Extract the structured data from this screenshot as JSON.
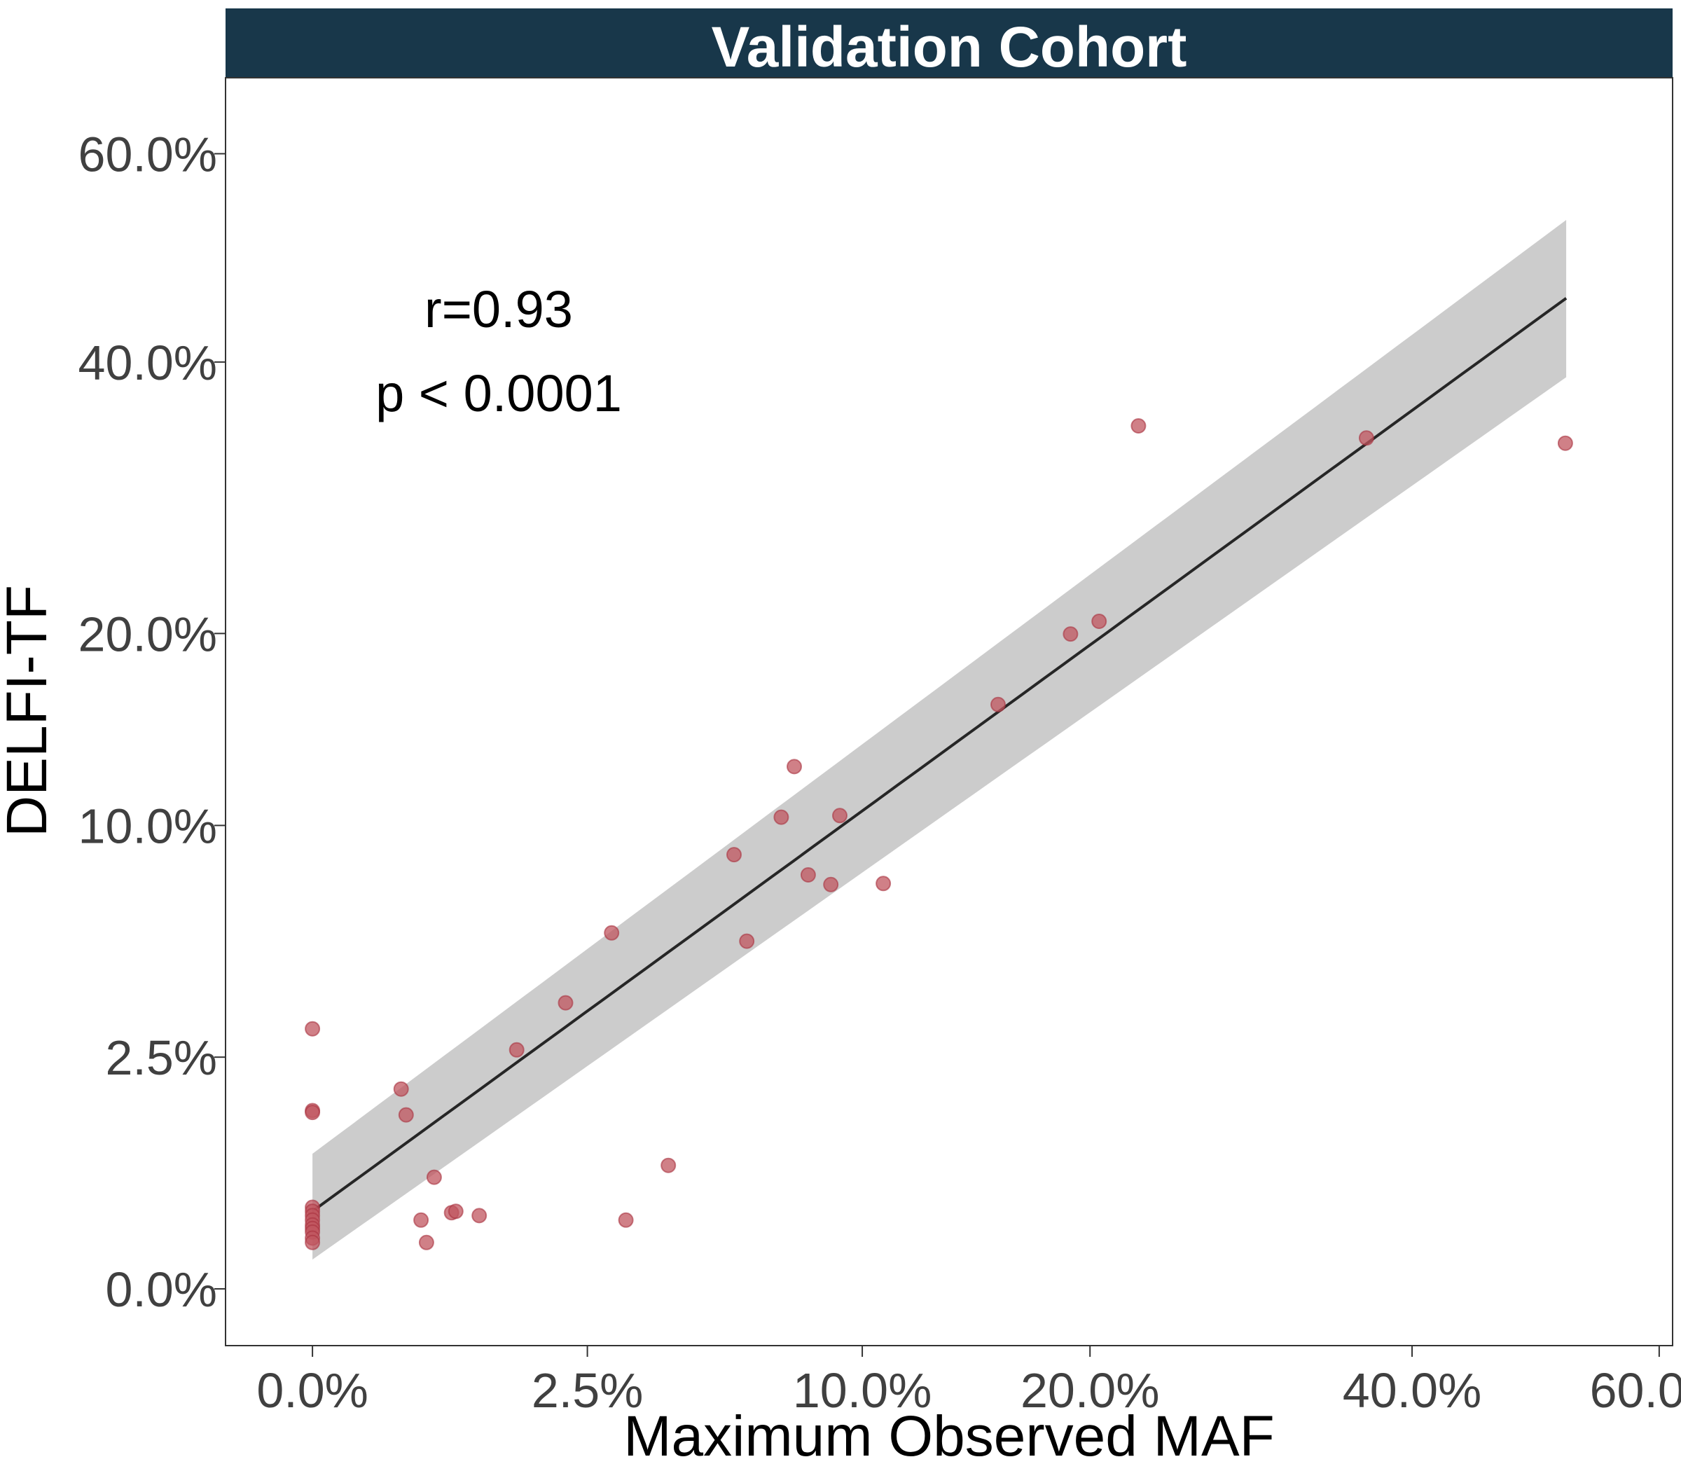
{
  "chart_data": {
    "type": "scatter",
    "title": "Validation Cohort",
    "xlabel": "Maximum Observed MAF",
    "ylabel": "DELFI-TF",
    "scale": "sqrt",
    "x_ticks": [
      0,
      0.025,
      0.1,
      0.2,
      0.4,
      0.6
    ],
    "x_tick_labels": [
      "0.0%",
      "2.5%",
      "10.0%",
      "20.0%",
      "40.0%",
      "60.0%"
    ],
    "y_ticks": [
      0,
      0.025,
      0.1,
      0.2,
      0.4,
      0.6
    ],
    "y_tick_labels": [
      "0.0%",
      "2.5%",
      "10.0%",
      "20.0%",
      "40.0%",
      "60.0%"
    ],
    "xlim": [
      -0.0025,
      0.612
    ],
    "ylim": [
      -0.0015,
      0.683
    ],
    "grid": false,
    "legend": "none",
    "annotations": {
      "r": "r=0.93",
      "p": "p < 0.0001"
    },
    "points": [
      {
        "x": 0.0,
        "y": 0.0315
      },
      {
        "x": 0.0,
        "y": 0.0148
      },
      {
        "x": 0.0,
        "y": 0.0145
      },
      {
        "x": 0.0,
        "y": 0.0031
      },
      {
        "x": 0.0,
        "y": 0.0028
      },
      {
        "x": 0.0,
        "y": 0.0025
      },
      {
        "x": 0.0,
        "y": 0.0022
      },
      {
        "x": 0.0,
        "y": 0.0019
      },
      {
        "x": 0.0,
        "y": 0.0017
      },
      {
        "x": 0.0,
        "y": 0.0015
      },
      {
        "x": 0.0,
        "y": 0.0012
      },
      {
        "x": 0.0,
        "y": 0.001
      },
      {
        "x": 0.0026,
        "y": 0.0186
      },
      {
        "x": 0.0029,
        "y": 0.0141
      },
      {
        "x": 0.0039,
        "y": 0.0022
      },
      {
        "x": 0.0043,
        "y": 0.001
      },
      {
        "x": 0.0049,
        "y": 0.0058
      },
      {
        "x": 0.0064,
        "y": 0.0027
      },
      {
        "x": 0.0068,
        "y": 0.0028
      },
      {
        "x": 0.0092,
        "y": 0.0025
      },
      {
        "x": 0.0138,
        "y": 0.0266
      },
      {
        "x": 0.0212,
        "y": 0.0381
      },
      {
        "x": 0.0296,
        "y": 0.059
      },
      {
        "x": 0.0325,
        "y": 0.0022
      },
      {
        "x": 0.0419,
        "y": 0.0071
      },
      {
        "x": 0.0588,
        "y": 0.0878
      },
      {
        "x": 0.0624,
        "y": 0.0563
      },
      {
        "x": 0.0727,
        "y": 0.1036
      },
      {
        "x": 0.0768,
        "y": 0.127
      },
      {
        "x": 0.0813,
        "y": 0.0798
      },
      {
        "x": 0.0889,
        "y": 0.0761
      },
      {
        "x": 0.092,
        "y": 0.1043
      },
      {
        "x": 0.1078,
        "y": 0.0765
      },
      {
        "x": 0.1555,
        "y": 0.159
      },
      {
        "x": 0.1901,
        "y": 0.1997
      },
      {
        "x": 0.2047,
        "y": 0.2075
      },
      {
        "x": 0.2257,
        "y": 0.3468
      },
      {
        "x": 0.3675,
        "y": 0.3371
      },
      {
        "x": 0.5193,
        "y": 0.333
      }
    ],
    "fit_line": {
      "x": [
        0,
        0.52
      ],
      "y": [
        0.0028,
        0.457
      ],
      "color": "#262626"
    },
    "confidence_band": {
      "x": [
        0,
        0.52
      ],
      "upper": [
        0.0085,
        0.532
      ],
      "lower": [
        0.0004,
        0.387
      ],
      "color": "#cccccc"
    },
    "colors": {
      "strip": "#18374a",
      "point_fill": "#c0555f",
      "point_stroke": "#a8323f"
    }
  }
}
